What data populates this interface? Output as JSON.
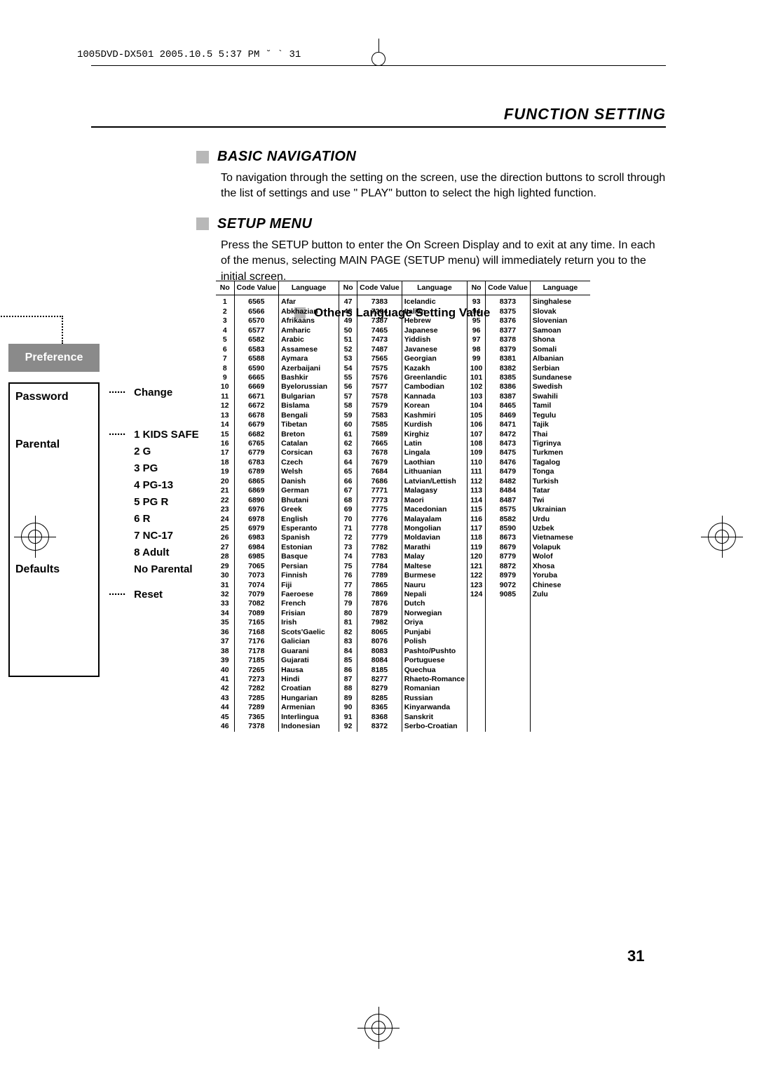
{
  "header_stamp": "1005DVD-DX501  2005.10.5 5:37 PM  ˘ ` 31",
  "title": "FUNCTION SETTING",
  "sections": {
    "basic_nav": {
      "heading": "BASIC NAVIGATION",
      "text": "To navigation through the setting on the screen, use the direction buttons to scroll through the list of settings and use \" PLAY\" button to select the high lighted function."
    },
    "setup_menu": {
      "heading": "SETUP MENU",
      "text": "Press the SETUP button to enter the On Screen Display and to exit at any time. In each of the menus, selecting MAIN PAGE (SETUP menu) will immediately return you to the initial screen."
    },
    "others_lang": "Others Language Setting Value"
  },
  "sidebar": {
    "tab": "Preference",
    "items": {
      "password": "Password",
      "parental": "Parental",
      "defaults": "Defaults"
    },
    "sub": {
      "change": "Change",
      "parental_opts": [
        "1 KIDS SAFE",
        "2 G",
        "3 PG",
        "4 PG-13",
        "5 PG R",
        "6 R",
        "7 NC-17",
        "8 Adult",
        "No Parental"
      ],
      "reset": "Reset",
      "dots": "······"
    }
  },
  "table": {
    "headers": [
      "No",
      "Code Value",
      "Language"
    ],
    "col1": [
      [
        "1",
        "6565",
        "Afar"
      ],
      [
        "2",
        "6566",
        "Abkhazian"
      ],
      [
        "3",
        "6570",
        "Afrikaans"
      ],
      [
        "4",
        "6577",
        "Amharic"
      ],
      [
        "5",
        "6582",
        "Arabic"
      ],
      [
        "6",
        "6583",
        "Assamese"
      ],
      [
        "7",
        "6588",
        "Aymara"
      ],
      [
        "8",
        "6590",
        "Azerbaijani"
      ],
      [
        "9",
        "6665",
        "Bashkir"
      ],
      [
        "10",
        "6669",
        "Byelorussian"
      ],
      [
        "11",
        "6671",
        "Bulgarian"
      ],
      [
        "12",
        "6672",
        "Bislama"
      ],
      [
        "13",
        "6678",
        "Bengali"
      ],
      [
        "14",
        "6679",
        "Tibetan"
      ],
      [
        "15",
        "6682",
        "Breton"
      ],
      [
        "16",
        "6765",
        "Catalan"
      ],
      [
        "17",
        "6779",
        "Corsican"
      ],
      [
        "18",
        "6783",
        "Czech"
      ],
      [
        "19",
        "6789",
        "Welsh"
      ],
      [
        "20",
        "6865",
        "Danish"
      ],
      [
        "21",
        "6869",
        "German"
      ],
      [
        "22",
        "6890",
        "Bhutani"
      ],
      [
        "23",
        "6976",
        "Greek"
      ],
      [
        "24",
        "6978",
        "English"
      ],
      [
        "25",
        "6979",
        "Esperanto"
      ],
      [
        "26",
        "6983",
        "Spanish"
      ],
      [
        "27",
        "6984",
        "Estonian"
      ],
      [
        "28",
        "6985",
        "Basque"
      ],
      [
        "29",
        "7065",
        "Persian"
      ],
      [
        "30",
        "7073",
        "Finnish"
      ],
      [
        "31",
        "7074",
        "Fiji"
      ],
      [
        "32",
        "7079",
        "Faeroese"
      ],
      [
        "33",
        "7082",
        "French"
      ],
      [
        "34",
        "7089",
        "Frisian"
      ],
      [
        "35",
        "7165",
        "Irish"
      ],
      [
        "36",
        "7168",
        "Scots'Gaelic"
      ],
      [
        "37",
        "7176",
        "Galician"
      ],
      [
        "38",
        "7178",
        "Guarani"
      ],
      [
        "39",
        "7185",
        "Gujarati"
      ],
      [
        "40",
        "7265",
        "Hausa"
      ],
      [
        "41",
        "7273",
        "Hindi"
      ],
      [
        "42",
        "7282",
        "Croatian"
      ],
      [
        "43",
        "7285",
        "Hungarian"
      ],
      [
        "44",
        "7289",
        "Armenian"
      ],
      [
        "45",
        "7365",
        "Interlingua"
      ],
      [
        "46",
        "7378",
        "Indonesian"
      ]
    ],
    "col2": [
      [
        "47",
        "7383",
        "Icelandic"
      ],
      [
        "48",
        "7384",
        "Italian"
      ],
      [
        "49",
        "7387",
        "Hebrew"
      ],
      [
        "50",
        "7465",
        "Japanese"
      ],
      [
        "51",
        "7473",
        "Yiddish"
      ],
      [
        "52",
        "7487",
        "Javanese"
      ],
      [
        "53",
        "7565",
        "Georgian"
      ],
      [
        "54",
        "7575",
        "Kazakh"
      ],
      [
        "55",
        "7576",
        "Greenlandic"
      ],
      [
        "56",
        "7577",
        "Cambodian"
      ],
      [
        "57",
        "7578",
        "Kannada"
      ],
      [
        "58",
        "7579",
        "Korean"
      ],
      [
        "59",
        "7583",
        "Kashmiri"
      ],
      [
        "60",
        "7585",
        "Kurdish"
      ],
      [
        "61",
        "7589",
        "Kirghiz"
      ],
      [
        "62",
        "7665",
        "Latin"
      ],
      [
        "63",
        "7678",
        "Lingala"
      ],
      [
        "64",
        "7679",
        "Laothian"
      ],
      [
        "65",
        "7684",
        "Lithuanian"
      ],
      [
        "66",
        "7686",
        "Latvian/Lettish"
      ],
      [
        "67",
        "7771",
        "Malagasy"
      ],
      [
        "68",
        "7773",
        "Maori"
      ],
      [
        "69",
        "7775",
        "Macedonian"
      ],
      [
        "70",
        "7776",
        "Malayalam"
      ],
      [
        "71",
        "7778",
        "Mongolian"
      ],
      [
        "72",
        "7779",
        "Moldavian"
      ],
      [
        "73",
        "7782",
        "Marathi"
      ],
      [
        "74",
        "7783",
        "Malay"
      ],
      [
        "75",
        "7784",
        "Maltese"
      ],
      [
        "76",
        "7789",
        "Burmese"
      ],
      [
        "77",
        "7865",
        "Nauru"
      ],
      [
        "78",
        "7869",
        "Nepali"
      ],
      [
        "79",
        "7876",
        "Dutch"
      ],
      [
        "80",
        "7879",
        "Norwegian"
      ],
      [
        "81",
        "7982",
        "Oriya"
      ],
      [
        "82",
        "8065",
        "Punjabi"
      ],
      [
        "83",
        "8076",
        "Polish"
      ],
      [
        "84",
        "8083",
        "Pashto/Pushto"
      ],
      [
        "85",
        "8084",
        "Portuguese"
      ],
      [
        "86",
        "8185",
        "Quechua"
      ],
      [
        "87",
        "8277",
        "Rhaeto-Romance"
      ],
      [
        "88",
        "8279",
        "Romanian"
      ],
      [
        "89",
        "8285",
        "Russian"
      ],
      [
        "90",
        "8365",
        "Kinyarwanda"
      ],
      [
        "91",
        "8368",
        "Sanskrit"
      ],
      [
        "92",
        "8372",
        "Serbo-Croatian"
      ]
    ],
    "col3": [
      [
        "93",
        "8373",
        "Singhalese"
      ],
      [
        "94",
        "8375",
        "Slovak"
      ],
      [
        "95",
        "8376",
        "Slovenian"
      ],
      [
        "96",
        "8377",
        "Samoan"
      ],
      [
        "97",
        "8378",
        "Shona"
      ],
      [
        "98",
        "8379",
        "Somali"
      ],
      [
        "99",
        "8381",
        "Albanian"
      ],
      [
        "100",
        "8382",
        "Serbian"
      ],
      [
        "101",
        "8385",
        "Sundanese"
      ],
      [
        "102",
        "8386",
        "Swedish"
      ],
      [
        "103",
        "8387",
        "Swahili"
      ],
      [
        "104",
        "8465",
        "Tamil"
      ],
      [
        "105",
        "8469",
        "Tegulu"
      ],
      [
        "106",
        "8471",
        "Tajik"
      ],
      [
        "107",
        "8472",
        "Thai"
      ],
      [
        "108",
        "8473",
        "Tigrinya"
      ],
      [
        "109",
        "8475",
        "Turkmen"
      ],
      [
        "110",
        "8476",
        "Tagalog"
      ],
      [
        "111",
        "8479",
        "Tonga"
      ],
      [
        "112",
        "8482",
        "Turkish"
      ],
      [
        "113",
        "8484",
        "Tatar"
      ],
      [
        "114",
        "8487",
        "Twi"
      ],
      [
        "115",
        "8575",
        "Ukrainian"
      ],
      [
        "116",
        "8582",
        "Urdu"
      ],
      [
        "117",
        "8590",
        "Uzbek"
      ],
      [
        "118",
        "8673",
        "Vietnamese"
      ],
      [
        "119",
        "8679",
        "Volapuk"
      ],
      [
        "120",
        "8779",
        "Wolof"
      ],
      [
        "121",
        "8872",
        "Xhosa"
      ],
      [
        "122",
        "8979",
        "Yoruba"
      ],
      [
        "123",
        "9072",
        "Chinese"
      ],
      [
        "124",
        "9085",
        "Zulu"
      ]
    ]
  },
  "page_number": "31"
}
